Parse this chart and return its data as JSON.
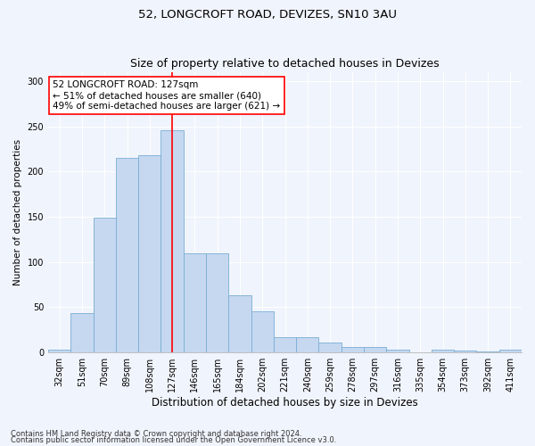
{
  "title1": "52, LONGCROFT ROAD, DEVIZES, SN10 3AU",
  "title2": "Size of property relative to detached houses in Devizes",
  "xlabel": "Distribution of detached houses by size in Devizes",
  "ylabel": "Number of detached properties",
  "categories": [
    "32sqm",
    "51sqm",
    "70sqm",
    "89sqm",
    "108sqm",
    "127sqm",
    "146sqm",
    "165sqm",
    "184sqm",
    "202sqm",
    "221sqm",
    "240sqm",
    "259sqm",
    "278sqm",
    "297sqm",
    "316sqm",
    "335sqm",
    "354sqm",
    "373sqm",
    "392sqm",
    "411sqm"
  ],
  "values": [
    3,
    43,
    149,
    215,
    218,
    246,
    109,
    109,
    63,
    45,
    17,
    17,
    11,
    6,
    6,
    3,
    0,
    3,
    2,
    1,
    3
  ],
  "bar_color": "#c5d8f0",
  "bar_edge_color": "#7aadd4",
  "vline_x": 5,
  "vline_color": "red",
  "annotation_text": "52 LONGCROFT ROAD: 127sqm\n← 51% of detached houses are smaller (640)\n49% of semi-detached houses are larger (621) →",
  "annotation_box_color": "white",
  "annotation_box_edge": "red",
  "ylim": [
    0,
    310
  ],
  "yticks": [
    0,
    50,
    100,
    150,
    200,
    250,
    300
  ],
  "footer1": "Contains HM Land Registry data © Crown copyright and database right 2024.",
  "footer2": "Contains public sector information licensed under the Open Government Licence v3.0.",
  "bg_color": "#f0f4fc",
  "plot_bg_color": "#f0f4fc",
  "grid_color": "#ffffff",
  "title1_fontsize": 9.5,
  "title2_fontsize": 9.0,
  "xlabel_fontsize": 8.5,
  "ylabel_fontsize": 7.5,
  "tick_fontsize": 7.0,
  "annotation_fontsize": 7.5,
  "footer_fontsize": 6.0
}
